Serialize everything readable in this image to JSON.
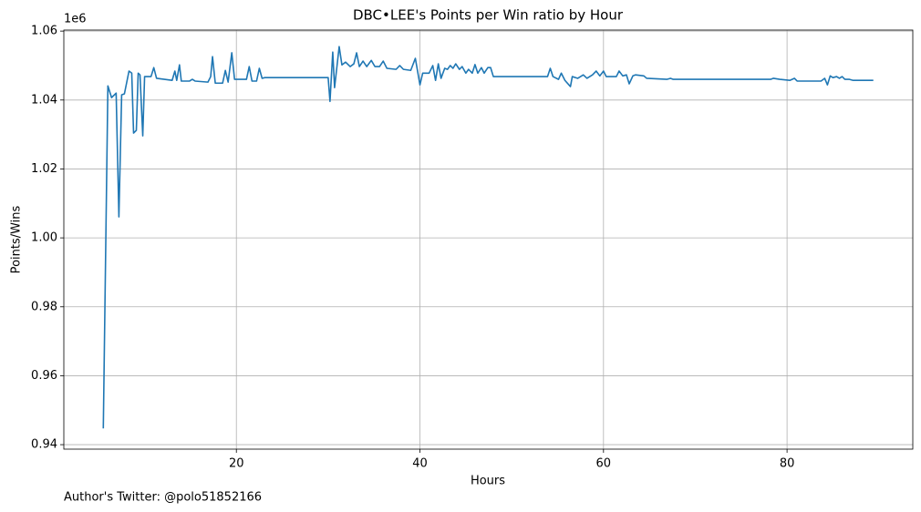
{
  "chart_data": {
    "type": "line",
    "title": "DBC•LEE's Points per Win ratio by Hour",
    "x_label": "Hours",
    "y_label": "Points/Wins",
    "y_offset_label": "1e6",
    "footer": "Author's Twitter: @polo51852166",
    "color": "#1f77b4",
    "grid": true,
    "xlim": [
      1.2,
      93.7
    ],
    "ylim": [
      938700,
      1060300
    ],
    "xticks": [
      20,
      40,
      60,
      80
    ],
    "yticks": [
      {
        "value": 940000,
        "label": "0.94"
      },
      {
        "value": 960000,
        "label": "0.96"
      },
      {
        "value": 980000,
        "label": "0.98"
      },
      {
        "value": 1000000,
        "label": "1.00"
      },
      {
        "value": 1020000,
        "label": "1.02"
      },
      {
        "value": 1040000,
        "label": "1.04"
      },
      {
        "value": 1060000,
        "label": "1.06"
      }
    ],
    "x": [
      5.5,
      6.0,
      6.4,
      6.9,
      7.2,
      7.5,
      7.8,
      8.3,
      8.6,
      8.8,
      9.1,
      9.3,
      9.5,
      9.8,
      10.0,
      10.7,
      11.0,
      11.3,
      13.0,
      13.3,
      13.5,
      13.8,
      14.0,
      14.9,
      15.2,
      15.5,
      16.9,
      17.2,
      17.4,
      17.7,
      18.5,
      18.8,
      19.1,
      19.5,
      19.8,
      21.1,
      21.4,
      21.7,
      22.2,
      22.5,
      22.8,
      23.1,
      30.0,
      30.2,
      30.5,
      30.7,
      31.2,
      31.5,
      31.9,
      32.4,
      32.8,
      33.1,
      33.4,
      33.8,
      34.2,
      34.7,
      35.1,
      35.6,
      36.0,
      36.4,
      37.4,
      37.8,
      38.2,
      39.0,
      39.5,
      40.0,
      40.3,
      41.0,
      41.4,
      41.7,
      42.0,
      42.3,
      42.7,
      43.0,
      43.3,
      43.6,
      43.9,
      44.3,
      44.6,
      45.0,
      45.3,
      45.7,
      46.0,
      46.3,
      46.7,
      47.0,
      47.4,
      47.7,
      48.0,
      53.9,
      54.2,
      54.5,
      55.1,
      55.4,
      55.8,
      56.4,
      56.6,
      57.2,
      57.8,
      58.2,
      58.8,
      59.2,
      59.6,
      60.0,
      60.3,
      61.4,
      61.7,
      62.1,
      62.5,
      62.8,
      63.2,
      63.5,
      64.4,
      64.7,
      66.9,
      67.3,
      67.6,
      78.2,
      78.5,
      79.2,
      80.3,
      80.8,
      81.1,
      83.7,
      84.1,
      84.4,
      84.7,
      85.0,
      85.4,
      85.7,
      86.0,
      86.3,
      86.8,
      87.2,
      89.4
    ],
    "values": [
      944700,
      1044100,
      1040700,
      1042000,
      1006100,
      1041500,
      1041800,
      1048400,
      1047800,
      1030400,
      1031200,
      1047800,
      1047300,
      1029600,
      1046800,
      1046800,
      1049400,
      1046300,
      1045700,
      1048400,
      1045700,
      1050200,
      1045500,
      1045500,
      1046000,
      1045500,
      1045200,
      1046800,
      1052600,
      1044900,
      1044900,
      1048600,
      1045200,
      1053700,
      1046000,
      1046000,
      1049700,
      1045500,
      1045500,
      1049200,
      1046300,
      1046500,
      1046500,
      1039600,
      1053900,
      1043600,
      1055500,
      1050200,
      1051000,
      1049700,
      1050500,
      1053700,
      1049700,
      1051300,
      1049700,
      1051500,
      1049700,
      1049700,
      1051300,
      1049200,
      1048900,
      1050000,
      1048900,
      1048600,
      1052100,
      1044400,
      1047800,
      1047800,
      1050000,
      1045700,
      1050500,
      1046300,
      1049200,
      1048900,
      1050000,
      1049200,
      1050500,
      1048900,
      1049700,
      1047800,
      1048900,
      1047800,
      1050300,
      1047800,
      1049400,
      1047800,
      1049400,
      1049400,
      1046800,
      1046800,
      1049200,
      1046800,
      1046000,
      1047800,
      1045700,
      1043900,
      1046800,
      1046300,
      1047300,
      1046300,
      1047300,
      1048400,
      1047000,
      1048400,
      1046800,
      1046800,
      1048400,
      1047000,
      1047300,
      1044700,
      1047000,
      1047300,
      1047000,
      1046300,
      1046000,
      1046300,
      1046000,
      1046000,
      1046300,
      1046000,
      1045700,
      1046300,
      1045500,
      1045500,
      1046300,
      1044400,
      1047000,
      1046500,
      1046800,
      1046300,
      1046800,
      1046000,
      1046000,
      1045700,
      1045700
    ]
  }
}
